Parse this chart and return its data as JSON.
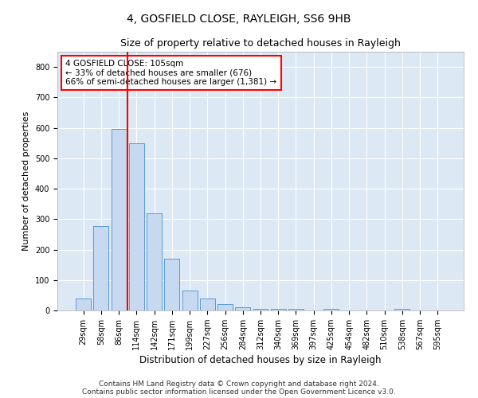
{
  "title1": "4, GOSFIELD CLOSE, RAYLEIGH, SS6 9HB",
  "title2": "Size of property relative to detached houses in Rayleigh",
  "xlabel": "Distribution of detached houses by size in Rayleigh",
  "ylabel": "Number of detached properties",
  "bar_labels": [
    "29sqm",
    "58sqm",
    "86sqm",
    "114sqm",
    "142sqm",
    "171sqm",
    "199sqm",
    "227sqm",
    "256sqm",
    "284sqm",
    "312sqm",
    "340sqm",
    "369sqm",
    "397sqm",
    "425sqm",
    "454sqm",
    "482sqm",
    "510sqm",
    "538sqm",
    "567sqm",
    "595sqm"
  ],
  "bar_values": [
    38,
    278,
    597,
    549,
    319,
    170,
    65,
    38,
    20,
    10,
    5,
    5,
    5,
    0,
    5,
    0,
    0,
    0,
    5,
    0,
    0
  ],
  "bar_color": "#c6d9f0",
  "bar_edge_color": "#5a9bd4",
  "vline_x": 2.5,
  "vline_color": "red",
  "annotation_text": "4 GOSFIELD CLOSE: 105sqm\n← 33% of detached houses are smaller (676)\n66% of semi-detached houses are larger (1,381) →",
  "annotation_box_color": "white",
  "annotation_box_edge": "red",
  "ylim": [
    0,
    850
  ],
  "yticks": [
    0,
    100,
    200,
    300,
    400,
    500,
    600,
    700,
    800
  ],
  "background_color": "#dce9f5",
  "grid_color": "white",
  "footer": "Contains HM Land Registry data © Crown copyright and database right 2024.\nContains public sector information licensed under the Open Government Licence v3.0.",
  "title1_fontsize": 10,
  "title2_fontsize": 9,
  "xlabel_fontsize": 8.5,
  "ylabel_fontsize": 8,
  "tick_fontsize": 7,
  "annotation_fontsize": 7.5,
  "footer_fontsize": 6.5
}
